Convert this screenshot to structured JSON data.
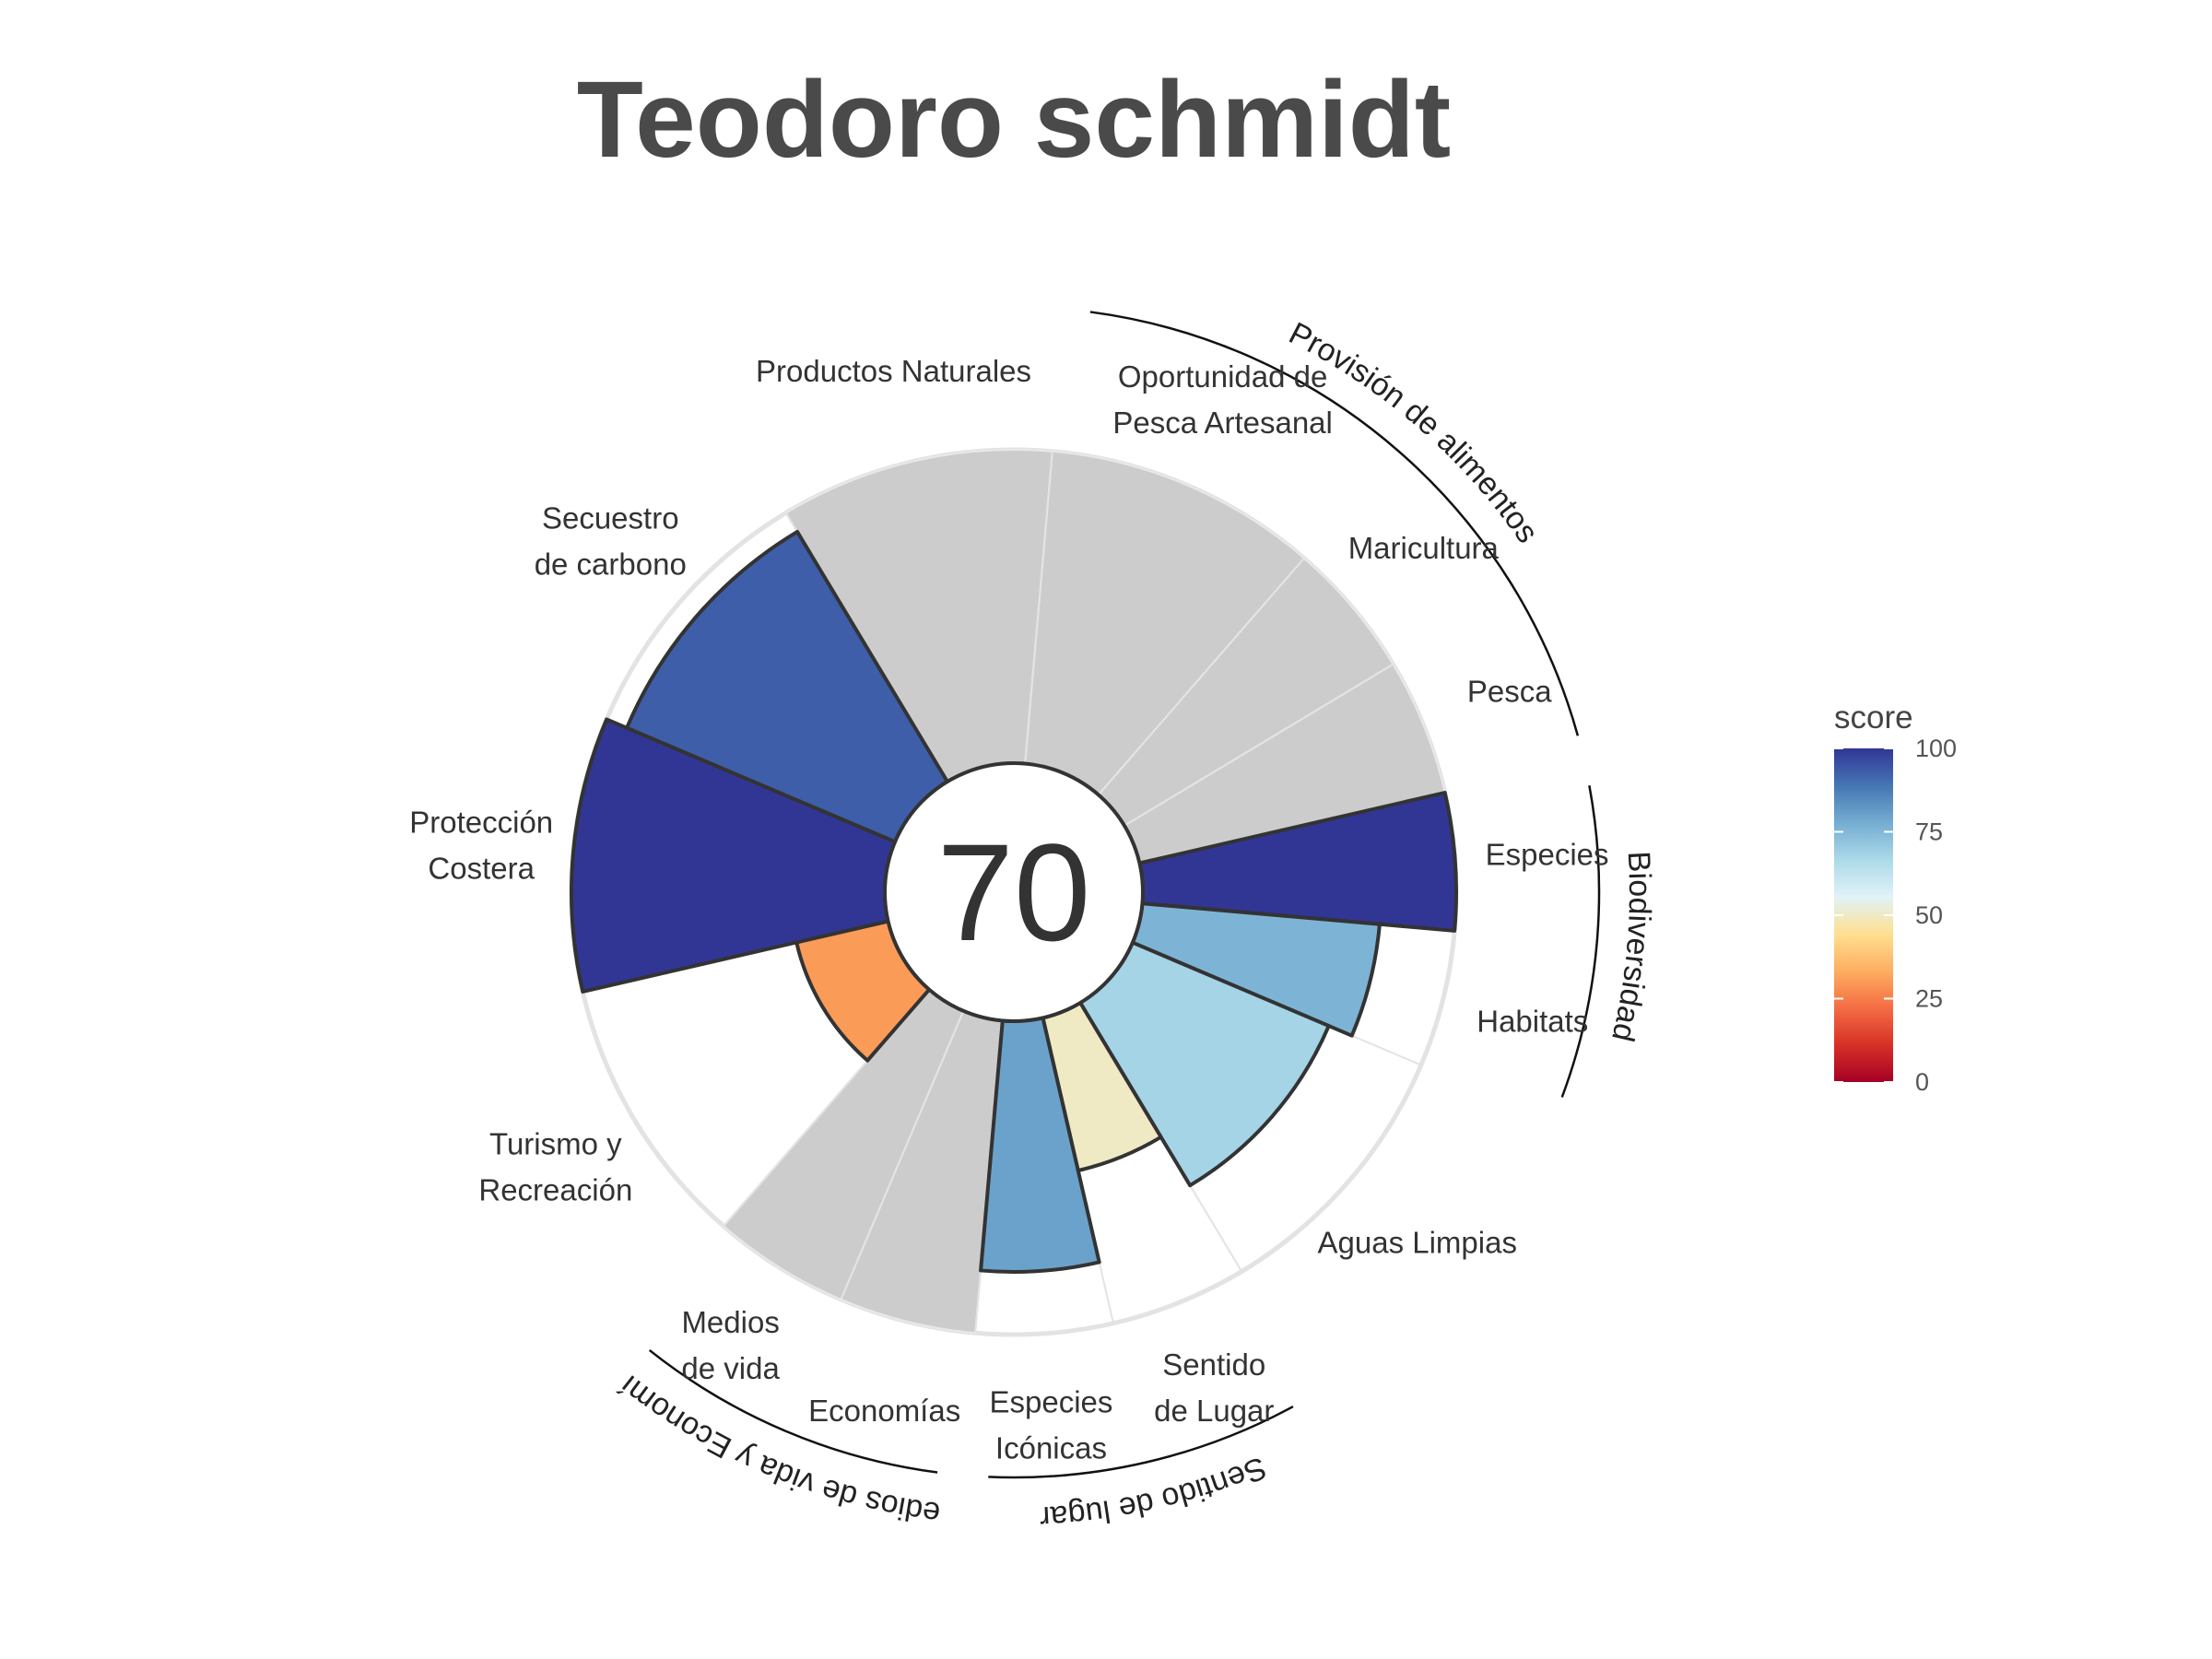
{
  "chart_data": {
    "type": "polar-bar",
    "title": "Teodoro schmidt",
    "center_value": "70",
    "max": 100,
    "goals": [
      {
        "label": "Productos Naturales",
        "value": null,
        "weight": 1
      },
      {
        "label": "Oportunidad de\nPesca Artesanal",
        "value": null,
        "weight": 1
      },
      {
        "label": "Maricultura",
        "value": null,
        "weight": 0.5
      },
      {
        "label": "Pesca",
        "value": null,
        "weight": 0.5
      },
      {
        "label": "Especies",
        "value": 100,
        "weight": 0.5
      },
      {
        "label": "Habitats",
        "value": 76,
        "weight": 0.5
      },
      {
        "label": "Aguas Limpias",
        "value": 68,
        "weight": 1
      },
      {
        "label": "Sentido\nde Lugar",
        "value": 50,
        "weight": 0.5
      },
      {
        "label": "Especies\nIcónicas",
        "value": 80,
        "weight": 0.5
      },
      {
        "label": "Economías",
        "value": null,
        "weight": 0.5
      },
      {
        "label": "Medios\nde vida",
        "value": null,
        "weight": 0.5
      },
      {
        "label": "Turismo y\nRecreación",
        "value": 30,
        "weight": 1
      },
      {
        "label": "Protección\nCostera",
        "value": 100,
        "weight": 1
      },
      {
        "label": "Secuestro\nde carbono",
        "value": 93,
        "weight": 1
      }
    ],
    "groups": [
      {
        "label": "Provisión de alimentos",
        "from": 1,
        "to": 3
      },
      {
        "label": "Biodiversidad",
        "from": 4,
        "to": 5
      },
      {
        "label": "Sentido de lugar",
        "from": 7,
        "to": 8
      },
      {
        "label": "Medios de vida y Economías",
        "from": 9,
        "to": 10
      }
    ],
    "legend": {
      "title": "score",
      "ticks": [
        0,
        25,
        50,
        75,
        100
      ],
      "colors": [
        "#a50026",
        "#d73027",
        "#f46d43",
        "#fdae61",
        "#fee090",
        "#e0f3f8",
        "#abd9e9",
        "#74add1",
        "#4575b4",
        "#313695"
      ]
    },
    "missing_color": "#cccccc"
  }
}
